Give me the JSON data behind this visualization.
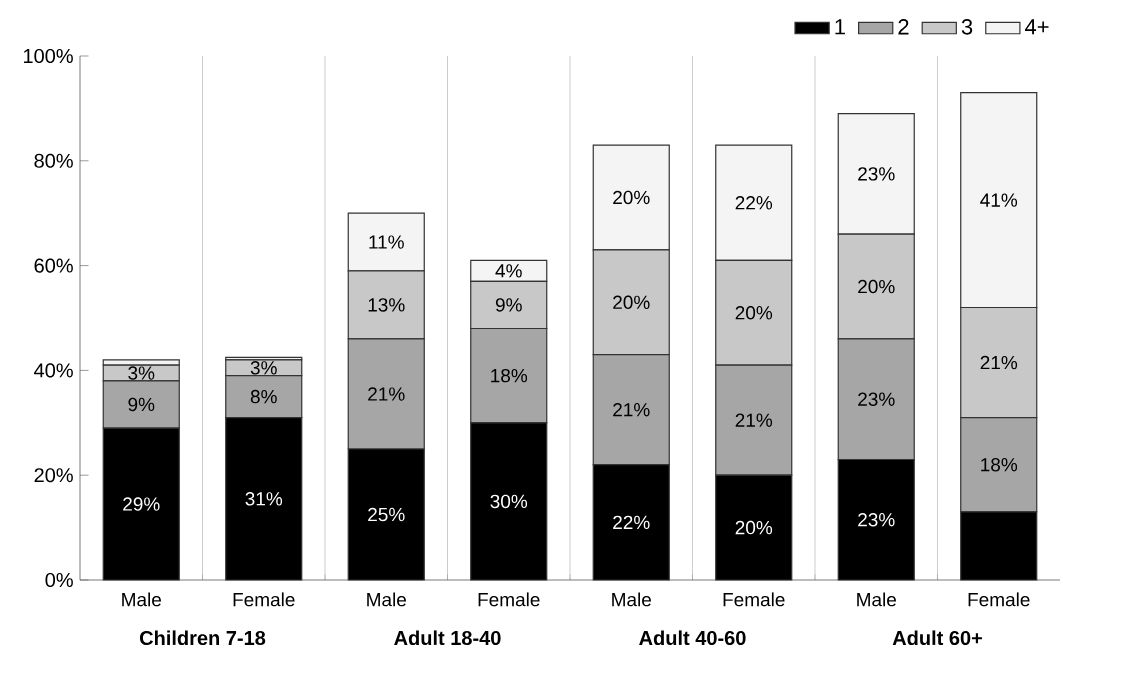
{
  "chart_data": {
    "type": "bar",
    "stacked": true,
    "categories": [
      "Male",
      "Female",
      "Male",
      "Female",
      "Male",
      "Female",
      "Male",
      "Female"
    ],
    "annotations": [
      "Children  7-18",
      "Adult 18-40",
      "Adult 40-60",
      "Adult 60+"
    ],
    "series": [
      {
        "name": "1",
        "color": "#000000",
        "values": [
          29,
          31,
          25,
          30,
          22,
          20,
          23,
          13
        ],
        "value_labels": [
          "29%",
          "31%",
          "25%",
          "30%",
          "22%",
          "20%",
          "23%",
          null
        ]
      },
      {
        "name": "2",
        "color": "#a6a6a6",
        "values": [
          9,
          8,
          21,
          18,
          21,
          21,
          23,
          18
        ],
        "value_labels": [
          "9%",
          "8%",
          "21%",
          "18%",
          "21%",
          "21%",
          "23%",
          "18%"
        ]
      },
      {
        "name": "3",
        "color": "#c8c8c8",
        "values": [
          3,
          3,
          13,
          9,
          20,
          20,
          20,
          21
        ],
        "value_labels": [
          "3%",
          "3%",
          "13%",
          "9%",
          "20%",
          "20%",
          "20%",
          "21%"
        ]
      },
      {
        "name": "4+",
        "color": "#f4f4f4",
        "values": [
          1,
          0.5,
          11,
          4,
          20,
          22,
          23,
          41
        ],
        "value_labels": [
          null,
          null,
          "11%",
          "4%",
          "20%",
          "22%",
          "23%",
          "41%"
        ]
      }
    ],
    "ylim": [
      0,
      100
    ],
    "yticks": [
      {
        "value": 0,
        "label": "0%"
      },
      {
        "value": 20,
        "label": "20%"
      },
      {
        "value": 40,
        "label": "40%"
      },
      {
        "value": 60,
        "label": "60%"
      },
      {
        "value": 80,
        "label": "80%"
      },
      {
        "value": 100,
        "label": "100%"
      }
    ],
    "grid": "x",
    "legend": "top right"
  }
}
